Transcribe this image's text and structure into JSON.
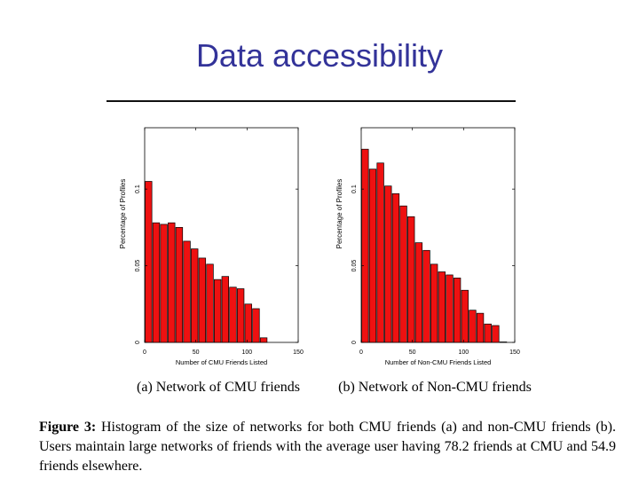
{
  "title": "Data accessibility",
  "colors": {
    "title": "#333399",
    "bar": "#ee1111"
  },
  "chart_data": [
    {
      "type": "bar",
      "xlabel": "Number of CMU Friends Listed",
      "ylabel": "Percentage of Profiles",
      "xlim": [
        0,
        150
      ],
      "ylim": [
        0,
        0.14
      ],
      "xticks": [
        0,
        50,
        100,
        150
      ],
      "yticks": [
        0,
        0.05,
        0.1
      ],
      "ytick_labels": [
        "0",
        "0.05",
        "0.1"
      ],
      "bin_width": 7.5,
      "x": [
        3.75,
        11.25,
        18.75,
        26.25,
        33.75,
        41.25,
        48.75,
        56.25,
        63.75,
        71.25,
        78.75,
        86.25,
        93.75,
        101.25,
        108.75,
        116.25,
        123.75,
        131.25,
        138.75,
        146.25
      ],
      "values": [
        0.105,
        0.078,
        0.077,
        0.078,
        0.075,
        0.066,
        0.061,
        0.055,
        0.051,
        0.041,
        0.043,
        0.036,
        0.035,
        0.025,
        0.022,
        0.003,
        0,
        0,
        0,
        0
      ],
      "caption": "(a) Network of CMU friends"
    },
    {
      "type": "bar",
      "xlabel": "Number of Non-CMU Friends Listed",
      "ylabel": "Percentage of Profiles",
      "xlim": [
        0,
        150
      ],
      "ylim": [
        0,
        0.14
      ],
      "xticks": [
        0,
        50,
        100,
        150
      ],
      "yticks": [
        0,
        0.05,
        0.1
      ],
      "ytick_labels": [
        "0",
        "0.05",
        "0.1"
      ],
      "bin_width": 7.5,
      "x": [
        3.75,
        11.25,
        18.75,
        26.25,
        33.75,
        41.25,
        48.75,
        56.25,
        63.75,
        71.25,
        78.75,
        86.25,
        93.75,
        101.25,
        108.75,
        116.25,
        123.75,
        131.25,
        138.75,
        146.25
      ],
      "values": [
        0.126,
        0.113,
        0.117,
        0.102,
        0.097,
        0.089,
        0.082,
        0.065,
        0.06,
        0.051,
        0.046,
        0.044,
        0.042,
        0.034,
        0.021,
        0.019,
        0.012,
        0.011,
        0.0003,
        0
      ],
      "caption": "(b) Network of Non-CMU friends"
    }
  ],
  "figure_caption": {
    "label": "Figure 3:",
    "text": "Histogram of the size of networks for both CMU friends (a) and non-CMU friends (b). Users maintain large networks of friends with the average user having 78.2 friends at CMU and 54.9 friends elsewhere."
  }
}
